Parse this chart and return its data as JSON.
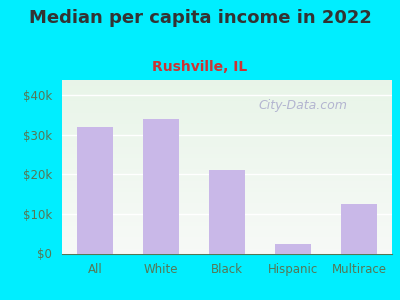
{
  "title": "Median per capita income in 2022",
  "subtitle": "Rushville, IL",
  "categories": [
    "All",
    "White",
    "Black",
    "Hispanic",
    "Multirace"
  ],
  "values": [
    32000,
    34000,
    21000,
    2500,
    12500
  ],
  "bar_color": "#c9b8e8",
  "title_fontsize": 13,
  "title_color": "#333333",
  "subtitle_fontsize": 10,
  "subtitle_color": "#cc3333",
  "background_outer": "#00eeff",
  "tick_label_color": "#557755",
  "ylim": [
    0,
    44000
  ],
  "yticks": [
    0,
    10000,
    20000,
    30000,
    40000
  ],
  "ytick_labels": [
    "$0",
    "$10k",
    "$20k",
    "$30k",
    "$40k"
  ],
  "watermark_text": "City-Data.com",
  "watermark_color": "#aaaacc",
  "watermark_fontsize": 9,
  "grid_color": "#ddeeee"
}
